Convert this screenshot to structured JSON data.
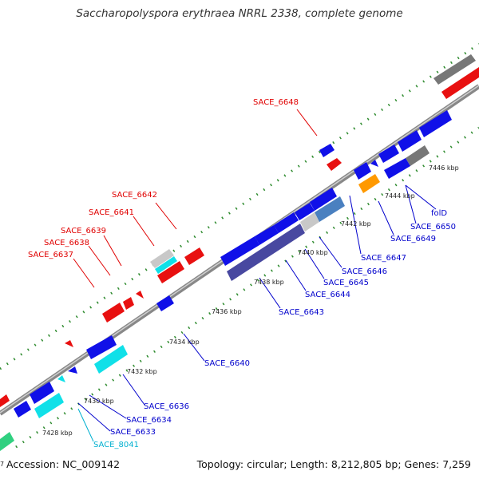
{
  "title": "Saccharopolyspora erythraea NRRL 2338, complete genome",
  "footer": {
    "accession": "Accession: NC_009142",
    "topology": "Topology: circular; Length: 8,212,805 bp; Genes: 7,259"
  },
  "colors": {
    "backbone": "#999999",
    "tick": "#2e8b2e",
    "forward_label": "#e00000",
    "reverse_label": "#0000cc",
    "cyan_label": "#00b0d0",
    "gene_blue": "#1010e8",
    "gene_red": "#e81010",
    "gene_cyan": "#10e0e8",
    "gene_gray": "#777777",
    "gene_silver": "#c8c8c8",
    "gene_orange": "#ff9900",
    "gene_purple": "#4848a0",
    "gene_steel": "#4a80c0",
    "gene_green": "#30d080"
  },
  "tick_labels": [
    "7428 kbp",
    "7430 kbp",
    "7432 kbp",
    "7434 kbp",
    "7436 kbp",
    "7438 kbp",
    "7440 kbp",
    "7442 kbp",
    "7444 kbp",
    "7446 kbp"
  ],
  "forward_genes": [
    "SACE_6648",
    "SACE_6642",
    "SACE_6641",
    "SACE_6639",
    "SACE_6638",
    "SACE_6637"
  ],
  "reverse_genes": [
    "SACE_6647",
    "SACE_6650",
    "folD",
    "SACE_6649",
    "SACE_6646",
    "SACE_6645",
    "SACE_6644",
    "SACE_6643",
    "SACE_6640",
    "SACE_6636",
    "SACE_6634",
    "SACE_6633"
  ],
  "cyan_genes": [
    "SACE_8041"
  ],
  "edge_fragment": "7"
}
